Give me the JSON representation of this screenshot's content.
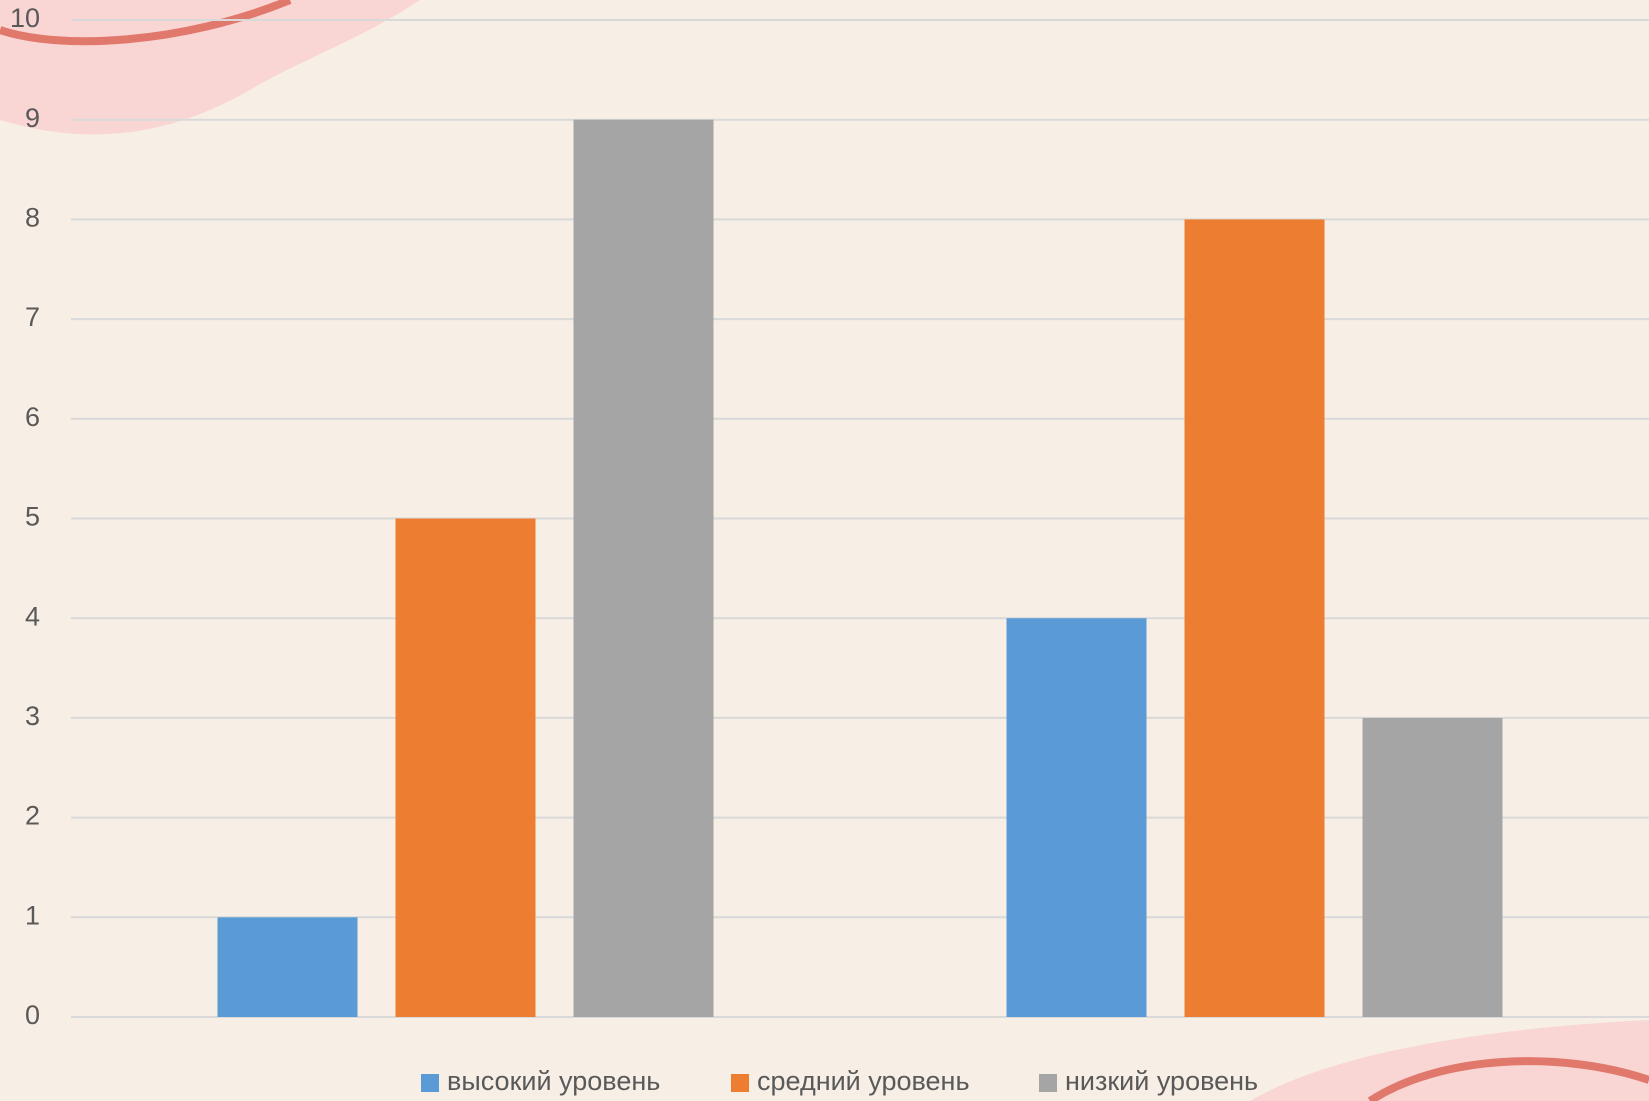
{
  "chart_data": {
    "type": "bar",
    "categories": [
      null,
      null
    ],
    "series": [
      {
        "name": "высокий уровень",
        "color": "#5b9bd5",
        "values": [
          1,
          4
        ]
      },
      {
        "name": "средний уровень",
        "color": "#ed7d31",
        "values": [
          5,
          8
        ]
      },
      {
        "name": "низкий уровень",
        "color": "#a5a5a5",
        "values": [
          9,
          3
        ]
      }
    ],
    "ylim": [
      0,
      10
    ],
    "yticks": [
      0,
      1,
      2,
      3,
      4,
      5,
      6,
      7,
      8,
      9,
      10
    ],
    "grid": true,
    "legend": "bottom"
  }
}
